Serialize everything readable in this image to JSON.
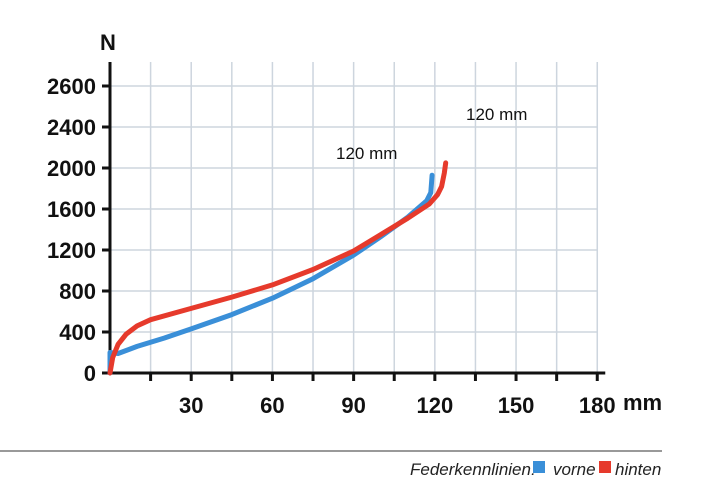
{
  "chart_data": {
    "type": "line",
    "title": "",
    "xlabel": "mm",
    "ylabel": "N",
    "xlim": [
      0,
      180
    ],
    "x_ticks": [
      30,
      60,
      90,
      120,
      150,
      180
    ],
    "x_minor_ticks": [
      15,
      45,
      75,
      105,
      135,
      165
    ],
    "y_ticks": [
      0,
      400,
      800,
      1200,
      1600,
      2000,
      2400,
      2600
    ],
    "grid": true,
    "legend_placement": "bottom-right",
    "legend_title": "Federkennlinien:",
    "annotations": [
      "120 mm",
      "120 mm"
    ],
    "series": [
      {
        "name": "vorne",
        "color": "#3a8fd8",
        "x": [
          0,
          0,
          3,
          10,
          20,
          30,
          45,
          60,
          75,
          90,
          100,
          110,
          117,
          118.5,
          119
        ],
        "y": [
          0,
          200,
          190,
          260,
          340,
          430,
          570,
          730,
          920,
          1150,
          1330,
          1520,
          1680,
          1760,
          1930
        ]
      },
      {
        "name": "hinten",
        "color": "#e63a2c",
        "x": [
          0,
          1,
          3,
          6,
          10,
          15,
          30,
          45,
          60,
          75,
          90,
          100,
          110,
          118,
          121,
          122.5,
          123.5,
          124
        ],
        "y": [
          0,
          150,
          280,
          380,
          460,
          520,
          630,
          740,
          860,
          1010,
          1190,
          1350,
          1510,
          1650,
          1740,
          1820,
          1950,
          2050
        ]
      }
    ]
  }
}
